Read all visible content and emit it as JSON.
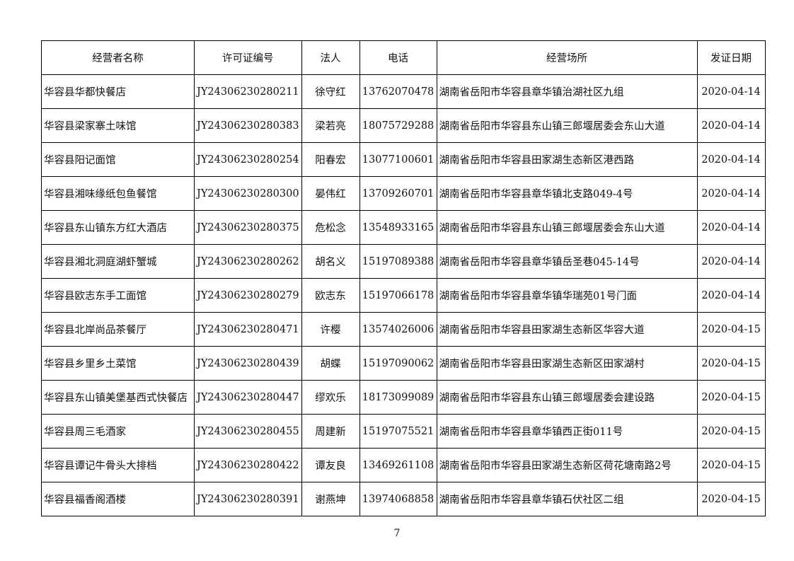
{
  "table": {
    "headers": [
      "经营者名称",
      "许可证编号",
      "法人",
      "电话",
      "经营场所",
      "发证日期"
    ],
    "rows": [
      [
        "华容县华都快餐店",
        "JY24306230280211",
        "徐守红",
        "13762070478",
        "湖南省岳阳市华容县章华镇治湖社区九组",
        "2020-04-14"
      ],
      [
        "华容县梁家寨土味馆",
        "JY24306230280383",
        "梁若亮",
        "18075729288",
        "湖南省岳阳市华容县东山镇三郎堰居委会东山大道",
        "2020-04-14"
      ],
      [
        "华容县阳记面馆",
        "JY24306230280254",
        "阳春宏",
        "13077100601",
        "湖南省岳阳市华容县田家湖生态新区港西路",
        "2020-04-14"
      ],
      [
        "华容县湘味缘纸包鱼餐馆",
        "JY24306230280300",
        "晏伟红",
        "13709260701",
        "湖南省岳阳市华容县章华镇北支路049-4号",
        "2020-04-14"
      ],
      [
        "华容县东山镇东方红大酒店",
        "JY24306230280375",
        "危松念",
        "13548933165",
        "湖南省岳阳市华容县东山镇三郎堰居委会东山大道",
        "2020-04-14"
      ],
      [
        "华容县湘北洞庭湖虾蟹城",
        "JY24306230280262",
        "胡名义",
        "15197089388",
        "湖南省岳阳市华容县章华镇岳圣巷045-14号",
        "2020-04-14"
      ],
      [
        "华容县欧志东手工面馆",
        "JY24306230280279",
        "欧志东",
        "15197066178",
        "湖南省岳阳市华容县章华镇华瑞苑01号门面",
        "2020-04-14"
      ],
      [
        "华容县北岸尚品茶餐厅",
        "JY24306230280471",
        "许樱",
        "13574026006",
        "湖南省岳阳市华容县田家湖生态新区华容大道",
        "2020-04-15"
      ],
      [
        "华容县乡里乡土菜馆",
        "JY24306230280439",
        "胡蝶",
        "15197090062",
        "湖南省岳阳市华容县田家湖生态新区田家湖村",
        "2020-04-15"
      ],
      [
        "华容县东山镇美堡基西式快餐店",
        "JY24306230280447",
        "缪欢乐",
        "18173099089",
        "湖南省岳阳市华容县东山镇三郎堰居委会建设路",
        "2020-04-15"
      ],
      [
        "华容县周三毛酒家",
        "JY24306230280455",
        "周建新",
        "15197075521",
        "湖南省岳阳市华容县章华镇西正街011号",
        "2020-04-15"
      ],
      [
        "华容县谭记牛骨头大排档",
        "JY24306230280422",
        "谭友良",
        "13469261108",
        "湖南省岳阳市华容县田家湖生态新区荷花塘南路2号",
        "2020-04-15"
      ],
      [
        "华容县福香阁酒楼",
        "JY24306230280391",
        "谢燕坤",
        "13974068858",
        "湖南省岳阳市华容县章华镇石伏社区二组",
        "2020-04-15"
      ]
    ]
  },
  "page_number": "7"
}
